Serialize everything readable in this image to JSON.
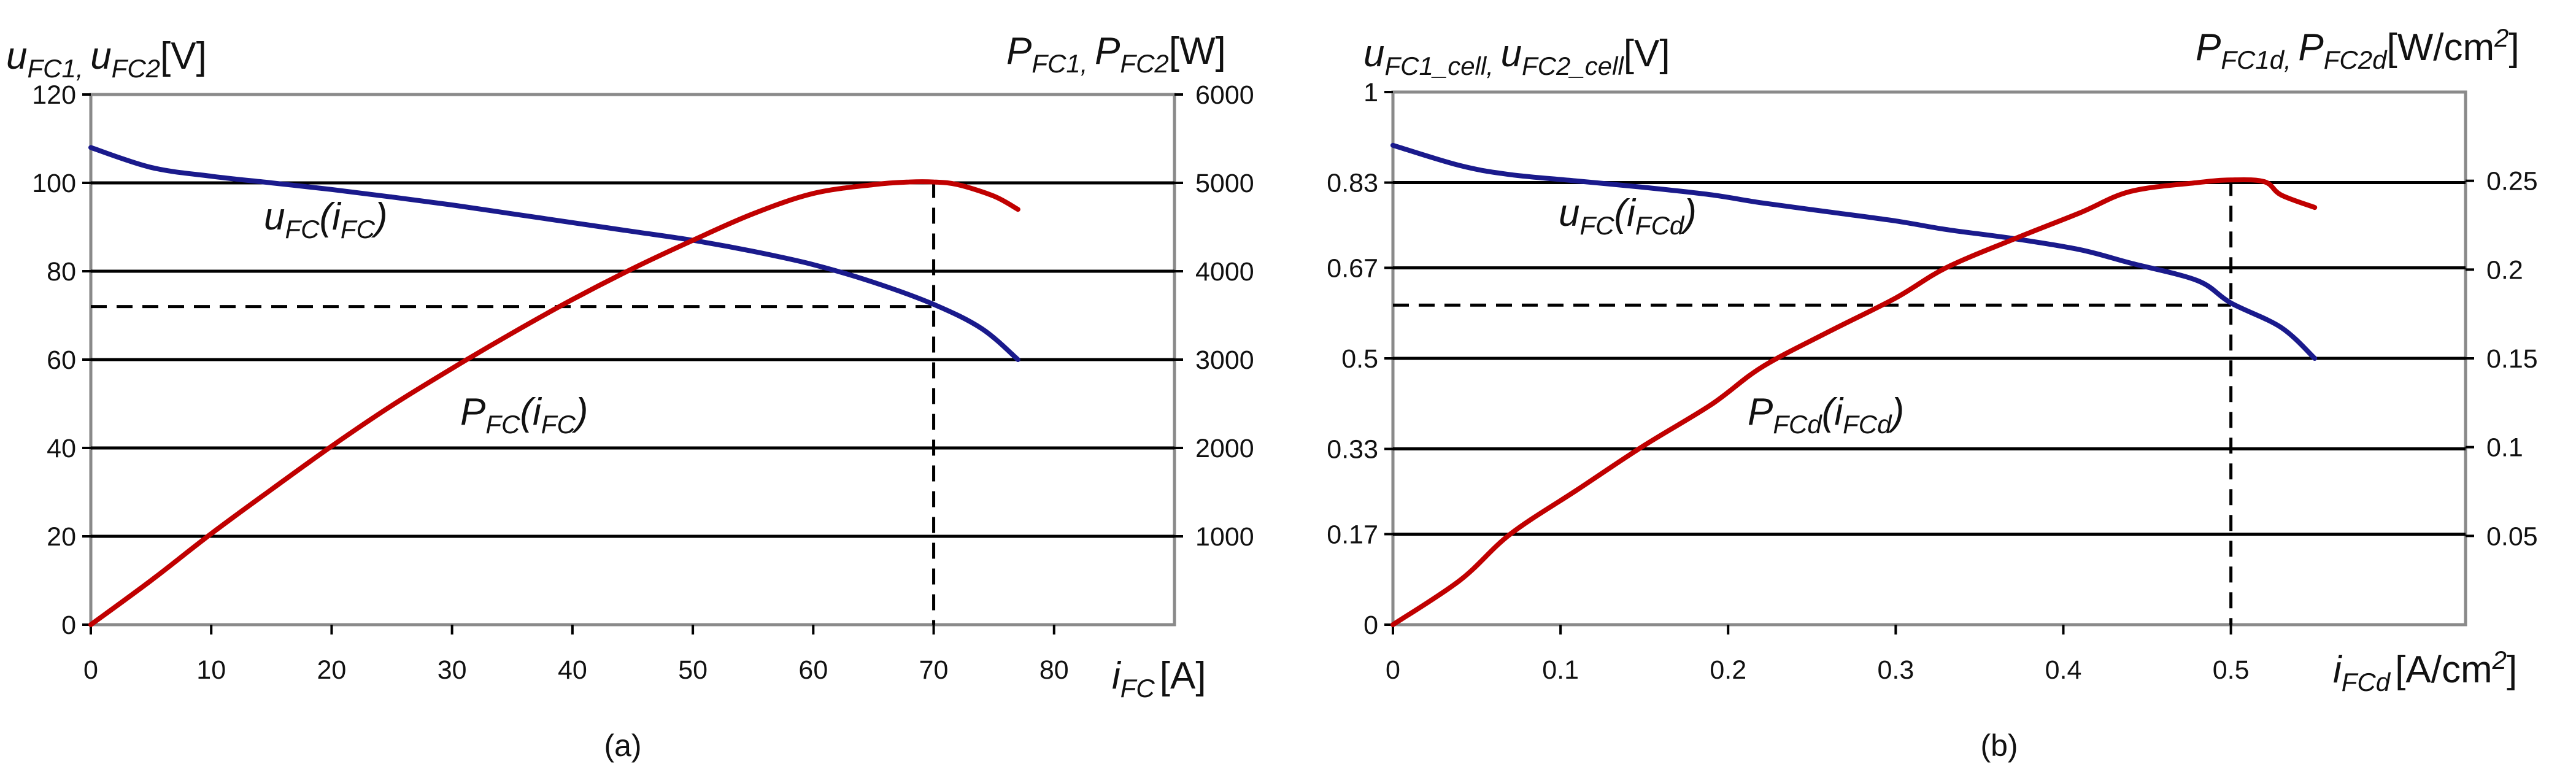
{
  "chart_data": [
    {
      "type": "line",
      "caption": "(a)",
      "title": "",
      "xlabel": {
        "var": "i",
        "sub": "FC",
        "unit": "[A]"
      },
      "ylabel_left": {
        "var": "u",
        "sub1": "FC1",
        "sep": ", ",
        "var2": "u",
        "sub2": "FC2",
        "unit": "[V]"
      },
      "ylabel_right": {
        "var": "P",
        "sub1": "FC1",
        "sep": ", ",
        "var2": "P",
        "sub2": "FC2",
        "unit": "[W]"
      },
      "xlim": [
        0,
        90
      ],
      "ylim_left": [
        0,
        120
      ],
      "ylim_right": [
        0,
        6000
      ],
      "x_ticks": [
        0,
        10,
        20,
        30,
        40,
        50,
        60,
        70,
        80
      ],
      "x_tick_labels": [
        "0",
        "10",
        "20",
        "30",
        "40",
        "50",
        "60",
        "70",
        "80"
      ],
      "y_left_ticks": [
        0,
        20,
        40,
        60,
        80,
        100,
        120
      ],
      "y_left_tick_labels": [
        "0",
        "20",
        "40",
        "60",
        "80",
        "100",
        "120"
      ],
      "y_right_ticks": [
        1000,
        2000,
        3000,
        4000,
        5000,
        6000
      ],
      "y_right_tick_labels": [
        "1000",
        "2000",
        "3000",
        "4000",
        "5000",
        "6000"
      ],
      "grid": "horizontal",
      "series": [
        {
          "name": "u_FC(i_FC)",
          "label": {
            "var": "u",
            "sub": "FC",
            "arg": "i",
            "argsub": "FC"
          },
          "axis": "left",
          "color": "#1a1a8c",
          "x": [
            0,
            5,
            10,
            15,
            20,
            25,
            30,
            35,
            40,
            45,
            50,
            55,
            60,
            65,
            70,
            74,
            77
          ],
          "y": [
            108,
            103.5,
            101.5,
            100,
            98.5,
            96.8,
            95,
            93,
            91,
            89,
            87,
            84.5,
            81.5,
            77.5,
            72.5,
            67,
            60
          ]
        },
        {
          "name": "P_FC(i_FC)",
          "label": {
            "var": "P",
            "sub": "FC",
            "arg": "i",
            "argsub": "FC"
          },
          "axis": "right",
          "color": "#c00000",
          "x": [
            0,
            5,
            10,
            15,
            20,
            25,
            30,
            35,
            40,
            45,
            50,
            55,
            60,
            65,
            68,
            70,
            72,
            75,
            77
          ],
          "y": [
            0,
            500,
            1030,
            1530,
            2020,
            2480,
            2900,
            3300,
            3680,
            4030,
            4350,
            4650,
            4880,
            4980,
            5010,
            5010,
            4980,
            4850,
            4700
          ]
        }
      ],
      "reference_lines": [
        {
          "kind": "horizontal",
          "axis": "left",
          "value": 72,
          "x_to": 70,
          "style": "dashed"
        },
        {
          "kind": "vertical",
          "x": 70,
          "y_to_right": 5010,
          "style": "dashed"
        }
      ]
    },
    {
      "type": "line",
      "caption": "(b)",
      "title": "",
      "xlabel": {
        "var": "i",
        "sub": "FCd",
        "unit": "[A/cm",
        "sup": "2",
        "unit_end": "]"
      },
      "ylabel_left": {
        "var": "u",
        "sub1": "FC1_cell",
        "sep": ", ",
        "var2": "u",
        "sub2": "FC2_cell",
        "unit": "[V]"
      },
      "ylabel_right": {
        "var": "P",
        "sub1": "FC1d",
        "sep": ", ",
        "var2": "P",
        "sub2": "FC2d",
        "unit": "[W/cm",
        "sup": "2",
        "unit_end": "]"
      },
      "xlim": [
        0,
        0.64
      ],
      "ylim_left": [
        0,
        1.0
      ],
      "ylim_right": [
        0,
        0.3
      ],
      "x_ticks": [
        0,
        0.1,
        0.2,
        0.3,
        0.4,
        0.5
      ],
      "x_tick_labels": [
        "0",
        "0.1",
        "0.2",
        "0.3",
        "0.4",
        "0.5"
      ],
      "y_left_ticks": [
        0,
        0.17,
        0.33,
        0.5,
        0.67,
        0.83,
        1.0
      ],
      "y_left_tick_labels": [
        "0",
        "0.17",
        "0.33",
        "0.5",
        "0.67",
        "0.83",
        "1"
      ],
      "y_right_ticks": [
        0.05,
        0.1,
        0.15,
        0.2,
        0.25
      ],
      "y_right_tick_labels": [
        "0.05",
        "0.1",
        "0.15",
        "0.2",
        "0.25"
      ],
      "grid": "horizontal",
      "series": [
        {
          "name": "u_FC(i_FCd)",
          "label": {
            "var": "u",
            "sub": "FC",
            "arg": "i",
            "argsub": "FCd"
          },
          "axis": "left",
          "color": "#1a1a8c",
          "x": [
            0,
            0.04,
            0.07,
            0.11,
            0.15,
            0.19,
            0.22,
            0.26,
            0.3,
            0.33,
            0.37,
            0.41,
            0.44,
            0.48,
            0.5,
            0.53,
            0.55
          ],
          "y": [
            0.9,
            0.862,
            0.845,
            0.833,
            0.821,
            0.807,
            0.792,
            0.775,
            0.758,
            0.742,
            0.725,
            0.704,
            0.679,
            0.646,
            0.604,
            0.558,
            0.5
          ]
        },
        {
          "name": "P_FCd(i_FCd)",
          "label": {
            "var": "P",
            "sub": "FCd",
            "arg": "i",
            "argsub": "FCd"
          },
          "axis": "right",
          "color": "#c00000",
          "x": [
            0,
            0.04,
            0.07,
            0.11,
            0.15,
            0.19,
            0.22,
            0.26,
            0.3,
            0.33,
            0.37,
            0.41,
            0.44,
            0.48,
            0.5,
            0.52,
            0.53,
            0.55
          ],
          "y": [
            0,
            0.025,
            0.051,
            0.076,
            0.101,
            0.124,
            0.145,
            0.165,
            0.184,
            0.201,
            0.217,
            0.232,
            0.244,
            0.249,
            0.2505,
            0.2495,
            0.242,
            0.235
          ]
        }
      ],
      "reference_lines": [
        {
          "kind": "horizontal",
          "axis": "left",
          "value": 0.6,
          "x_to": 0.5,
          "style": "dashed"
        },
        {
          "kind": "vertical",
          "x": 0.5,
          "y_to_right": 0.2505,
          "style": "dashed"
        }
      ]
    }
  ]
}
